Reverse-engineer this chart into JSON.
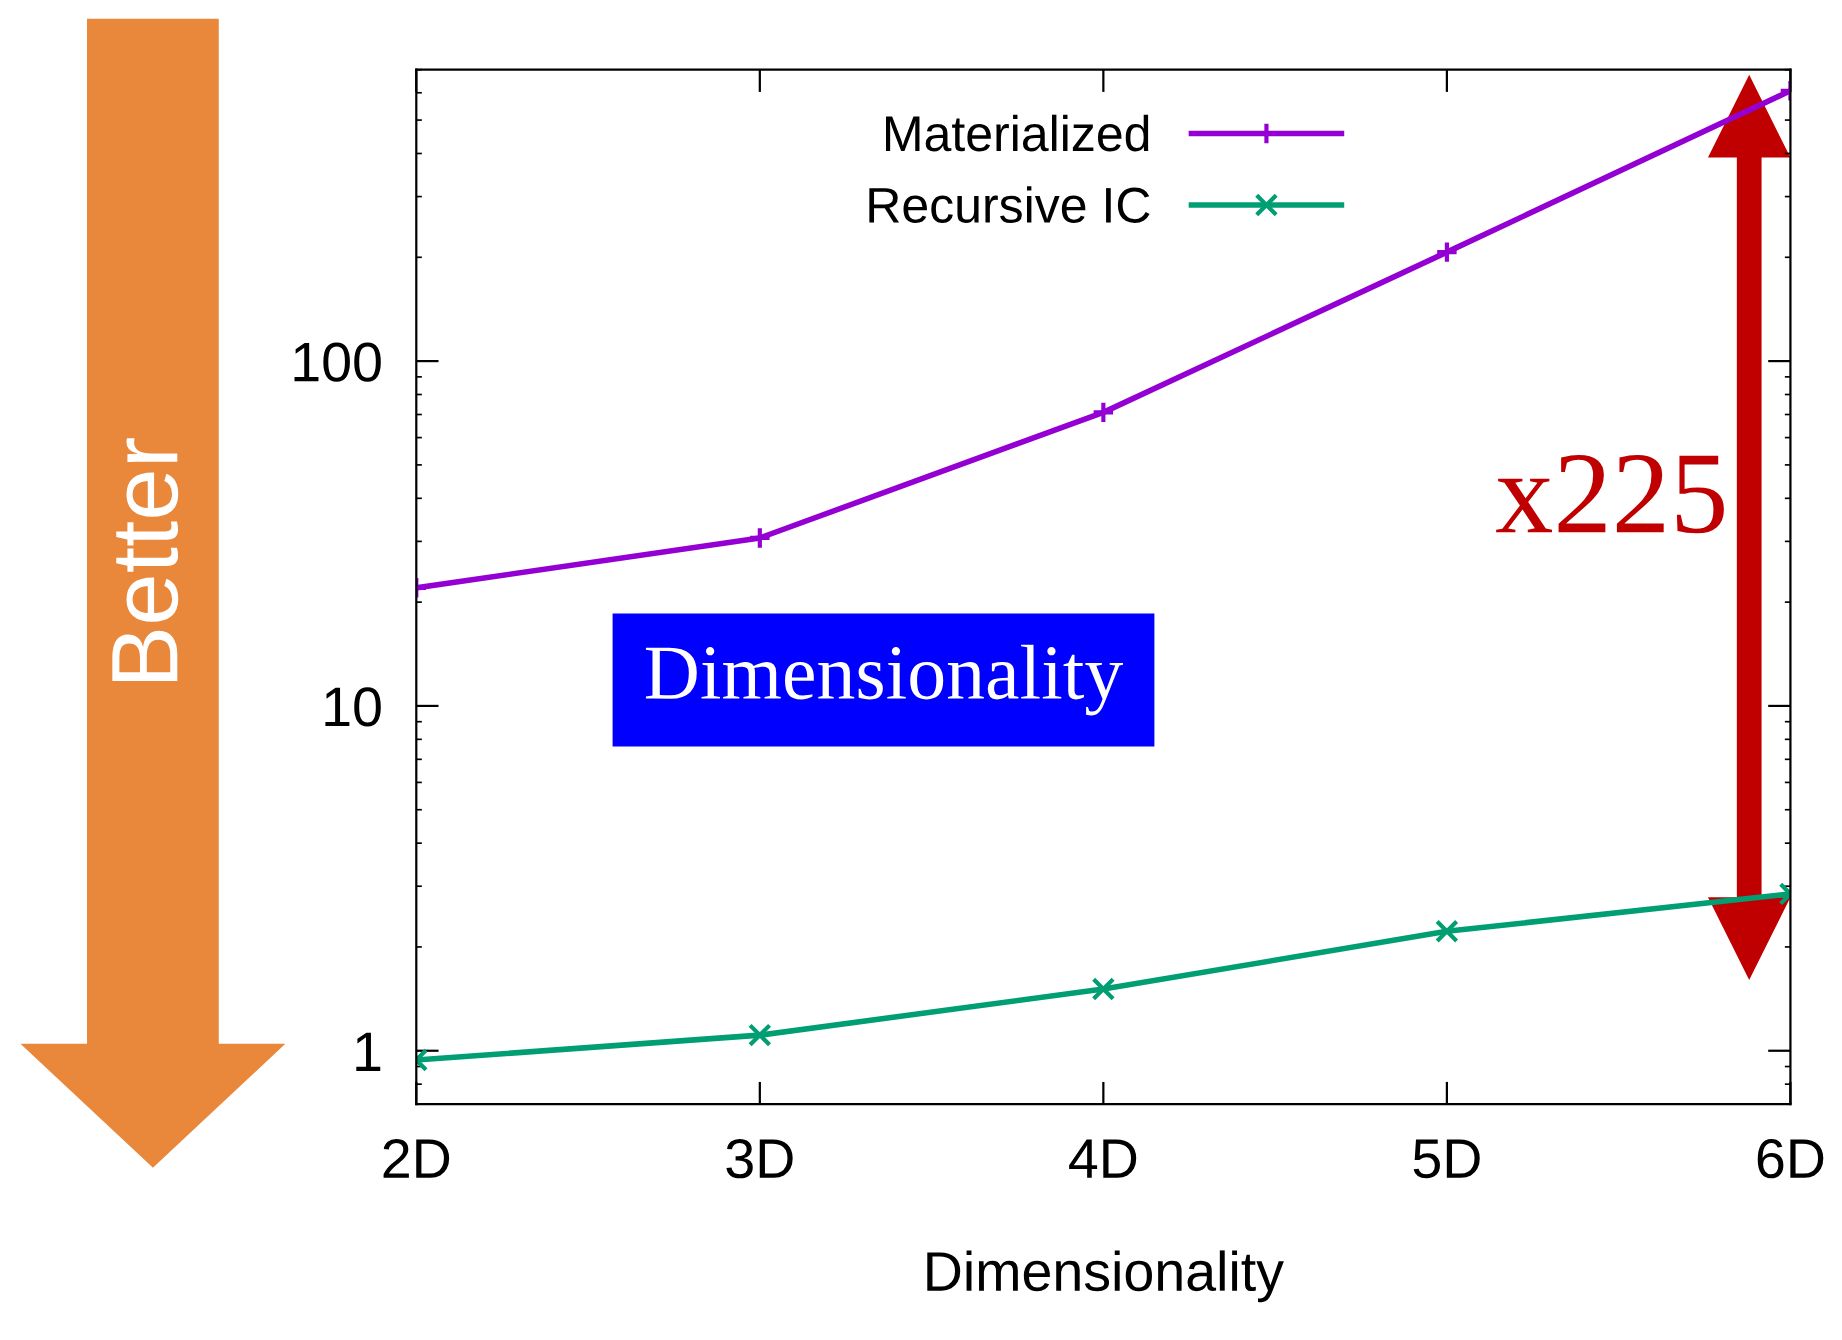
{
  "chart_data": {
    "type": "line",
    "xlabel": "Dimensionality",
    "categories": [
      "2D",
      "3D",
      "4D",
      "5D",
      "6D"
    ],
    "series": [
      {
        "name": "Materialized",
        "color": "#9400d3",
        "marker": "cross",
        "values": [
          22,
          30.7,
          71,
          207,
          608
        ]
      },
      {
        "name": "Recursive IC",
        "color": "#009e73",
        "marker": "x",
        "values": [
          0.94,
          1.11,
          1.51,
          2.22,
          2.85
        ]
      }
    ],
    "log": "y",
    "ylim": [
      0.7,
      700
    ],
    "yticks": [
      1,
      10,
      100
    ],
    "grid": false,
    "legend": "top",
    "annotations": [
      "Better",
      "x225",
      "Dimensionality"
    ]
  }
}
